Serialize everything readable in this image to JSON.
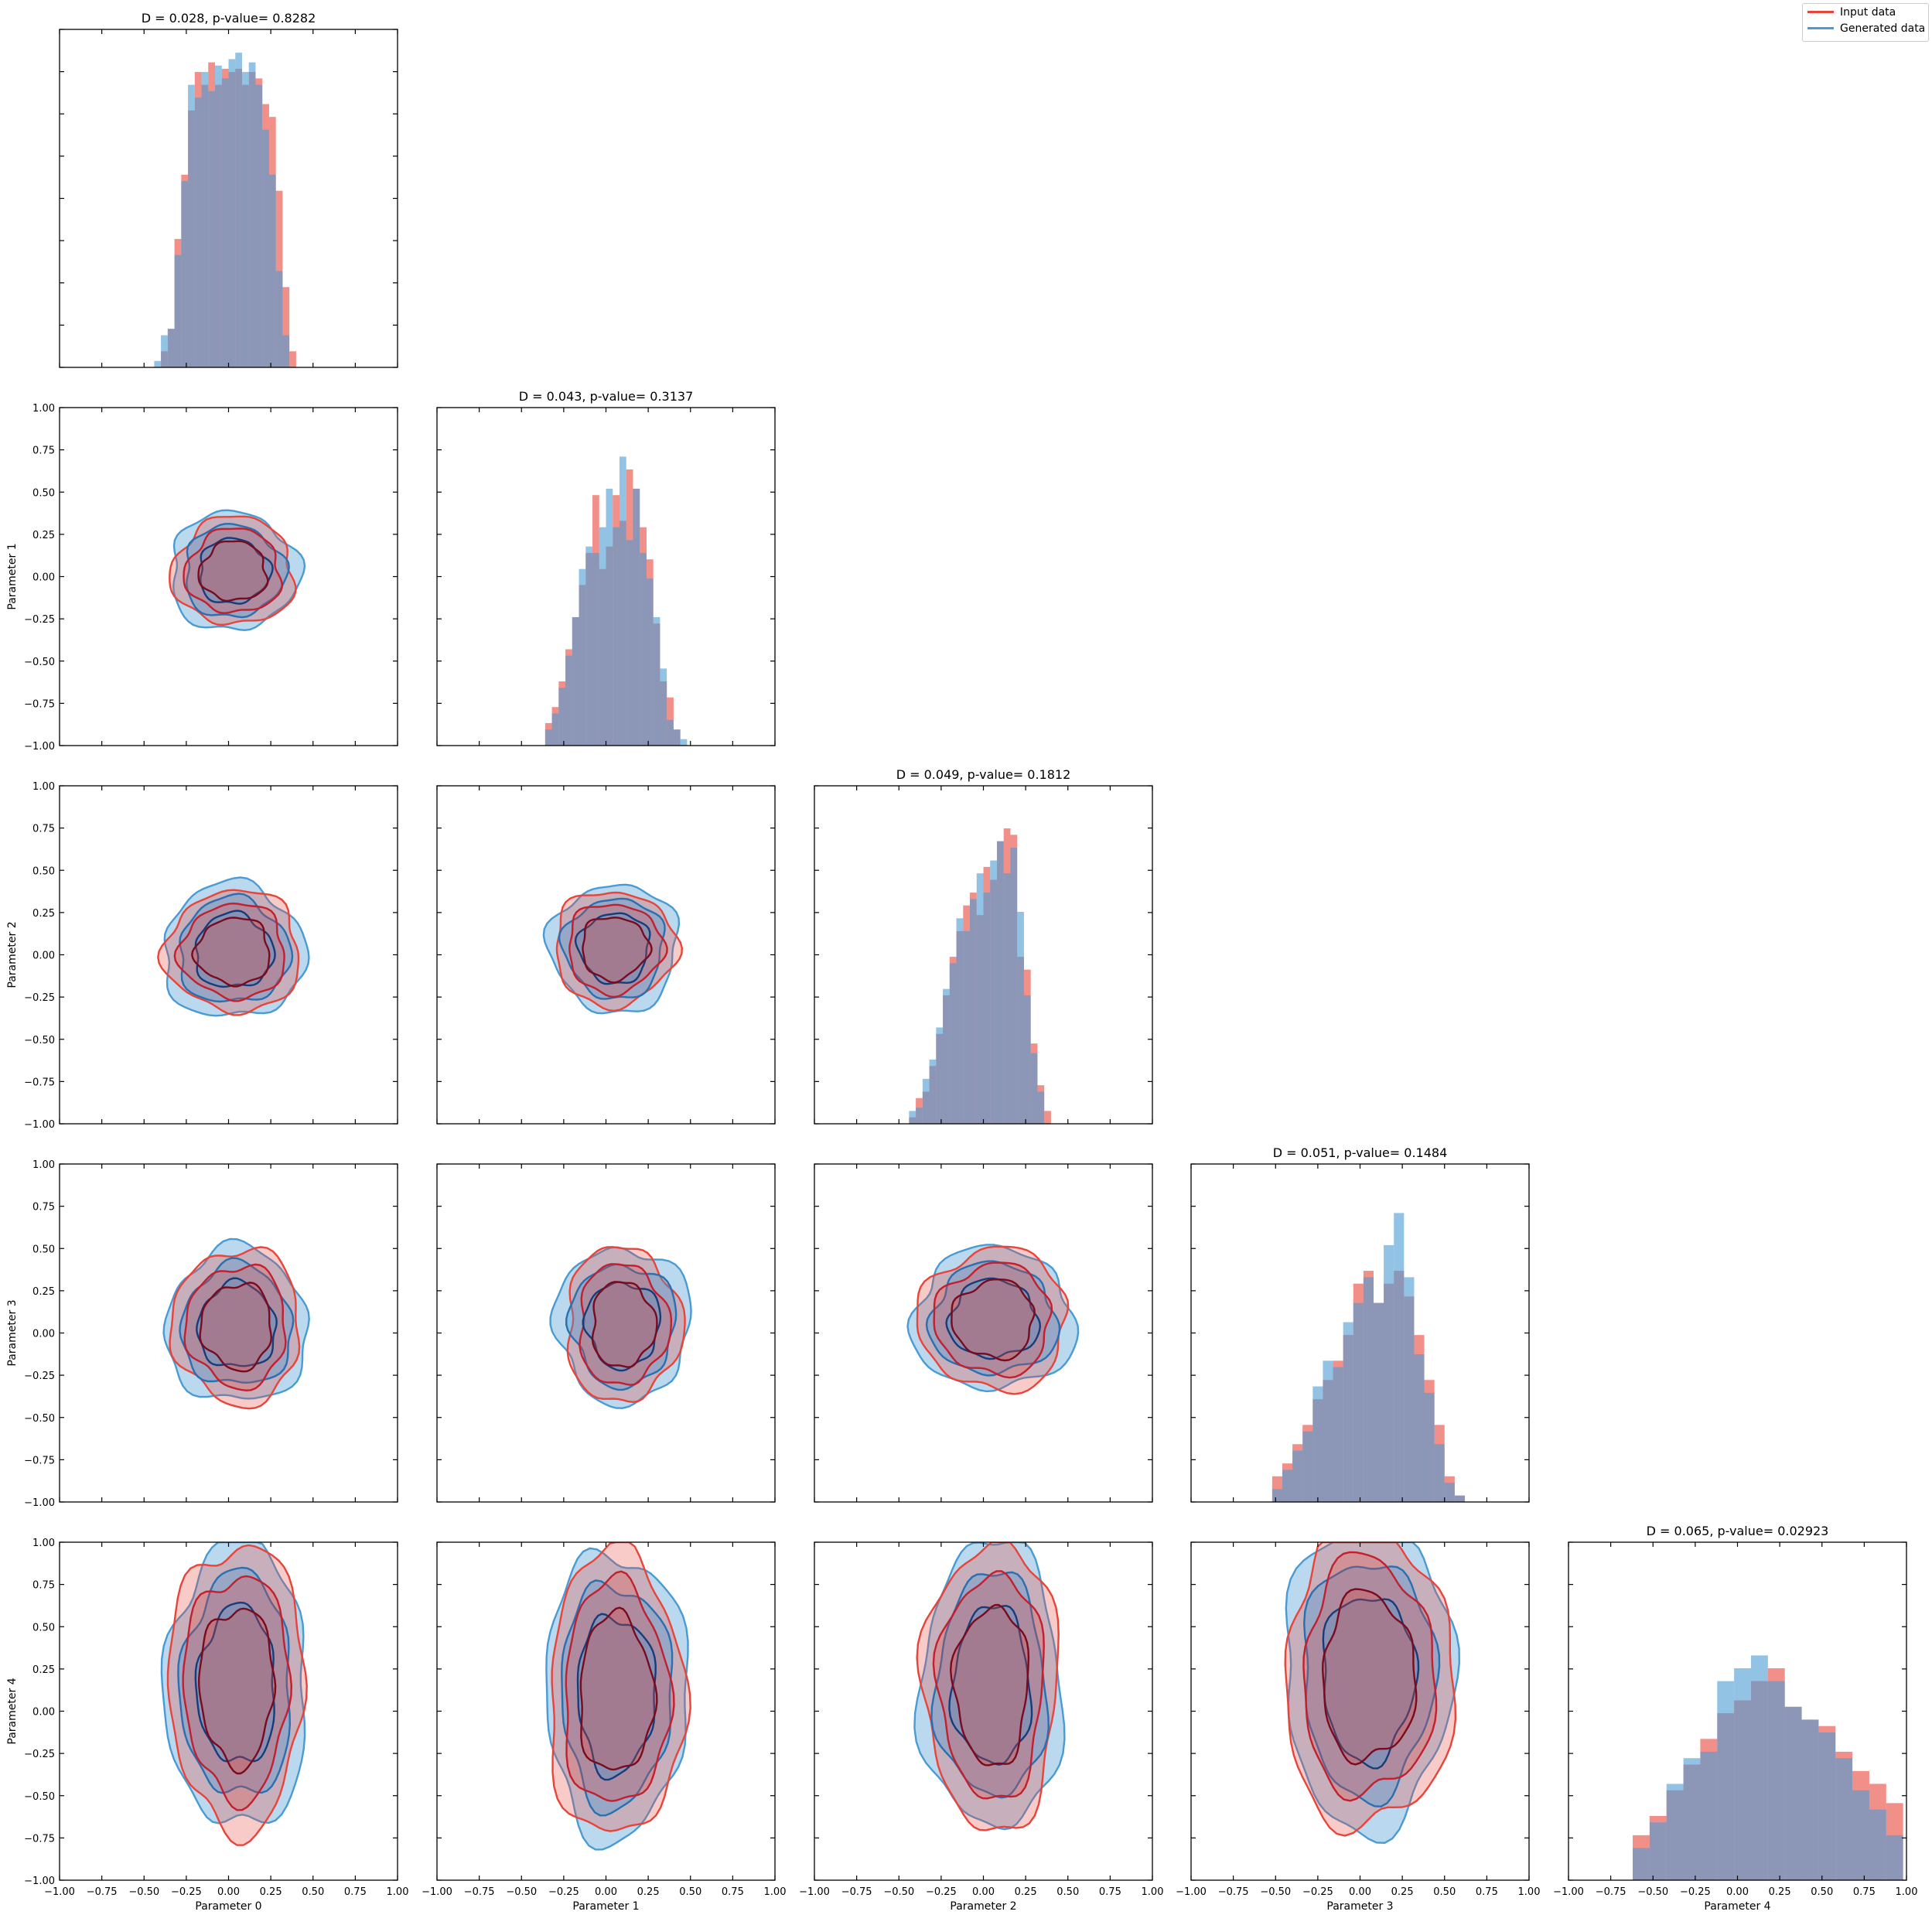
{
  "legend": {
    "input_label": "Input data",
    "generated_label": "Generated data",
    "input_color": "#e8443a",
    "generated_color": "#4a9bd4",
    "placement": "top-right"
  },
  "colors": {
    "input_fill": "#e8443a",
    "generated_fill": "#4a9bd4",
    "overlap": "#5a4f7c",
    "input_dark": "#7a0b1e",
    "generated_dark": "#163d7a"
  },
  "chart_data": {
    "type": "corner",
    "parameters": [
      "Parameter 0",
      "Parameter 1",
      "Parameter 2",
      "Parameter 3",
      "Parameter 4"
    ],
    "xlim": [
      -1.0,
      1.0
    ],
    "ylim": [
      -1.0,
      1.0
    ],
    "x_ticks": [
      -1.0,
      -0.75,
      -0.5,
      -0.25,
      0.0,
      0.25,
      0.5,
      0.75,
      1.0
    ],
    "y_ticks": [
      -1.0,
      -0.75,
      -0.5,
      -0.25,
      0.0,
      0.25,
      0.5,
      0.75,
      1.0
    ],
    "x_tick_labels": [
      "−1.00",
      "−0.75",
      "−0.50",
      "−0.25",
      "0.00",
      "0.25",
      "0.50",
      "0.75",
      "1.00"
    ],
    "y_tick_labels": [
      "−1.00",
      "−0.75",
      "−0.50",
      "−0.25",
      "0.00",
      "0.25",
      "0.50",
      "0.75",
      "1.00"
    ],
    "diagonal_titles": [
      "D = 0.028, p-value= 0.8282",
      "D = 0.043, p-value= 0.3137",
      "D = 0.049, p-value= 0.1812",
      "D = 0.051, p-value= 0.1484",
      "D = 0.065, p-value= 0.02923"
    ],
    "histograms": [
      {
        "param": "Parameter 0",
        "bin_edges": [
          -0.44,
          -0.4,
          -0.36,
          -0.32,
          -0.28,
          -0.24,
          -0.2,
          -0.16,
          -0.12,
          -0.08,
          -0.04,
          0.0,
          0.04,
          0.08,
          0.12,
          0.16,
          0.2,
          0.24,
          0.28,
          0.32,
          0.36,
          0.4
        ],
        "input": [
          0.0,
          0.05,
          0.12,
          0.4,
          0.6,
          0.8,
          0.92,
          0.88,
          0.95,
          0.88,
          0.93,
          0.92,
          0.93,
          0.88,
          0.92,
          0.9,
          0.82,
          0.78,
          0.55,
          0.25,
          0.05
        ],
        "generated": [
          0.02,
          0.1,
          0.12,
          0.35,
          0.58,
          0.88,
          0.84,
          0.92,
          0.86,
          0.94,
          0.9,
          0.96,
          0.98,
          0.92,
          0.95,
          0.88,
          0.74,
          0.6,
          0.3,
          0.1,
          0.0
        ]
      },
      {
        "param": "Parameter 1",
        "bin_edges": [
          -0.36,
          -0.32,
          -0.28,
          -0.24,
          -0.2,
          -0.16,
          -0.12,
          -0.08,
          -0.04,
          0.0,
          0.04,
          0.08,
          0.12,
          0.16,
          0.2,
          0.24,
          0.28,
          0.32,
          0.36,
          0.4,
          0.44,
          0.48
        ],
        "input": [
          0.07,
          0.12,
          0.2,
          0.3,
          0.4,
          0.5,
          0.6,
          0.78,
          0.55,
          0.62,
          0.78,
          0.7,
          0.86,
          0.8,
          0.68,
          0.58,
          0.38,
          0.2,
          0.15,
          0.05,
          0.0
        ],
        "generated": [
          0.05,
          0.1,
          0.18,
          0.28,
          0.4,
          0.55,
          0.62,
          0.6,
          0.68,
          0.8,
          0.68,
          0.9,
          0.64,
          0.8,
          0.6,
          0.52,
          0.4,
          0.24,
          0.08,
          0.05,
          0.02
        ]
      },
      {
        "param": "Parameter 2",
        "bin_edges": [
          -0.44,
          -0.4,
          -0.36,
          -0.32,
          -0.28,
          -0.24,
          -0.2,
          -0.16,
          -0.12,
          -0.08,
          -0.04,
          0.0,
          0.04,
          0.08,
          0.12,
          0.16,
          0.2,
          0.24,
          0.28,
          0.32,
          0.36,
          0.4
        ],
        "input": [
          0.02,
          0.08,
          0.1,
          0.18,
          0.28,
          0.4,
          0.52,
          0.6,
          0.68,
          0.72,
          0.65,
          0.8,
          0.76,
          0.88,
          0.92,
          0.9,
          0.52,
          0.48,
          0.25,
          0.12,
          0.04
        ],
        "generated": [
          0.04,
          0.05,
          0.14,
          0.2,
          0.3,
          0.42,
          0.5,
          0.64,
          0.6,
          0.7,
          0.78,
          0.72,
          0.82,
          0.88,
          0.78,
          0.86,
          0.66,
          0.4,
          0.22,
          0.1,
          0.0
        ]
      },
      {
        "param": "Parameter 3",
        "bin_edges": [
          -0.52,
          -0.46,
          -0.4,
          -0.34,
          -0.28,
          -0.22,
          -0.16,
          -0.1,
          -0.04,
          0.02,
          0.08,
          0.14,
          0.2,
          0.26,
          0.32,
          0.38,
          0.44,
          0.5,
          0.56,
          0.62
        ],
        "input": [
          0.08,
          0.12,
          0.18,
          0.24,
          0.32,
          0.38,
          0.44,
          0.52,
          0.68,
          0.72,
          0.62,
          0.68,
          0.72,
          0.64,
          0.52,
          0.38,
          0.24,
          0.08,
          0.02
        ],
        "generated": [
          0.04,
          0.1,
          0.16,
          0.22,
          0.36,
          0.44,
          0.42,
          0.56,
          0.62,
          0.7,
          0.62,
          0.8,
          0.9,
          0.7,
          0.46,
          0.34,
          0.18,
          0.06,
          0.02
        ]
      },
      {
        "param": "Parameter 4",
        "bin_edges": [
          -0.62,
          -0.52,
          -0.42,
          -0.32,
          -0.22,
          -0.12,
          -0.02,
          0.08,
          0.18,
          0.28,
          0.38,
          0.48,
          0.58,
          0.68,
          0.78,
          0.88,
          0.98
        ],
        "input": [
          0.14,
          0.2,
          0.28,
          0.36,
          0.44,
          0.52,
          0.56,
          0.62,
          0.66,
          0.54,
          0.5,
          0.48,
          0.4,
          0.34,
          0.3,
          0.24
        ],
        "generated": [
          0.1,
          0.18,
          0.3,
          0.38,
          0.4,
          0.62,
          0.66,
          0.7,
          0.62,
          0.54,
          0.5,
          0.46,
          0.38,
          0.28,
          0.22,
          0.14
        ]
      }
    ],
    "contours": {
      "levels": [
        "outer",
        "middle",
        "inner"
      ],
      "pairs": [
        {
          "row": 1,
          "col": 0,
          "center": [
            0.03,
            0.03
          ],
          "input_radius": [
            0.36,
            0.32
          ],
          "generated_radius": [
            0.38,
            0.35
          ]
        },
        {
          "row": 2,
          "col": 0,
          "center": [
            0.03,
            0.02
          ],
          "input_radius": [
            0.4,
            0.36
          ],
          "generated_radius": [
            0.42,
            0.4
          ]
        },
        {
          "row": 2,
          "col": 1,
          "center": [
            0.05,
            0.04
          ],
          "input_radius": [
            0.36,
            0.34
          ],
          "generated_radius": [
            0.38,
            0.38
          ]
        },
        {
          "row": 3,
          "col": 0,
          "center": [
            0.05,
            0.04
          ],
          "input_radius": [
            0.38,
            0.46
          ],
          "generated_radius": [
            0.42,
            0.46
          ]
        },
        {
          "row": 3,
          "col": 1,
          "center": [
            0.1,
            0.05
          ],
          "input_radius": [
            0.34,
            0.46
          ],
          "generated_radius": [
            0.4,
            0.46
          ]
        },
        {
          "row": 3,
          "col": 2,
          "center": [
            0.06,
            0.08
          ],
          "input_radius": [
            0.44,
            0.42
          ],
          "generated_radius": [
            0.48,
            0.42
          ]
        },
        {
          "row": 4,
          "col": 0,
          "center": [
            0.05,
            0.15
          ],
          "input_radius": [
            0.4,
            0.85
          ],
          "generated_radius": [
            0.42,
            0.85
          ]
        },
        {
          "row": 4,
          "col": 1,
          "center": [
            0.06,
            0.1
          ],
          "input_radius": [
            0.4,
            0.85
          ],
          "generated_radius": [
            0.42,
            0.85
          ]
        },
        {
          "row": 4,
          "col": 2,
          "center": [
            0.05,
            0.15
          ],
          "input_radius": [
            0.4,
            0.85
          ],
          "generated_radius": [
            0.42,
            0.85
          ]
        },
        {
          "row": 4,
          "col": 3,
          "center": [
            0.05,
            0.2
          ],
          "input_radius": [
            0.5,
            0.9
          ],
          "generated_radius": [
            0.5,
            0.9
          ]
        }
      ]
    },
    "grid": false,
    "legend_placement": "top-right"
  }
}
